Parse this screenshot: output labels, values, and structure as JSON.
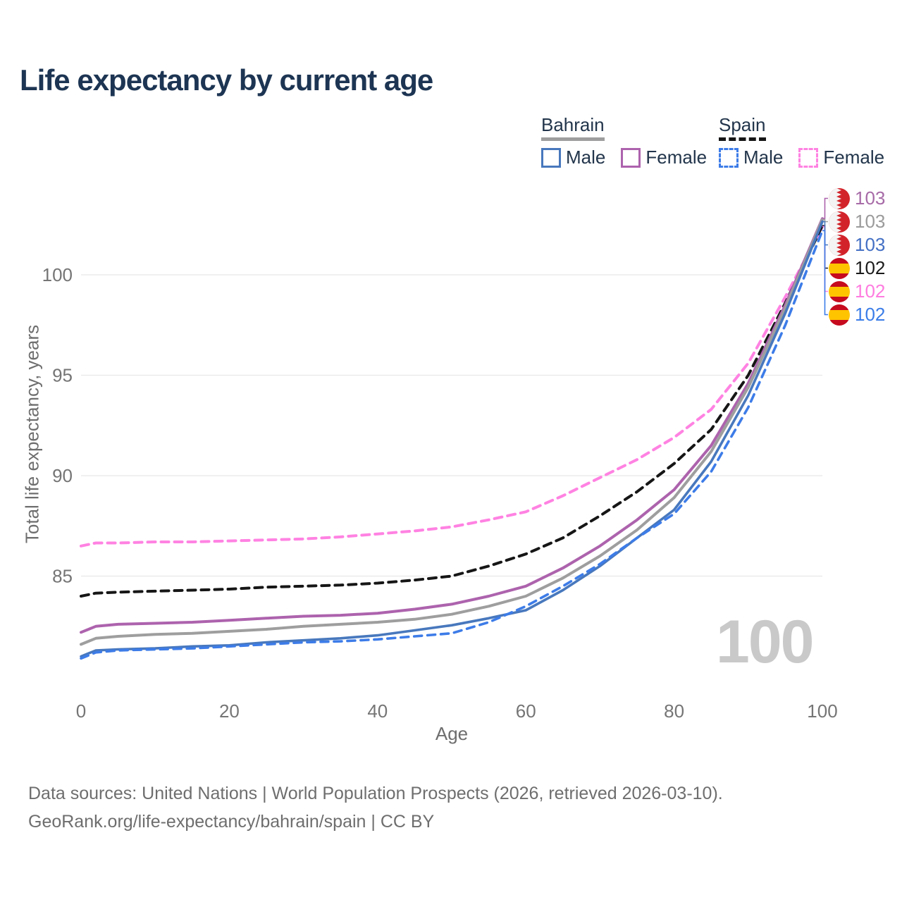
{
  "title": "Life expectancy by current age",
  "legend": {
    "groups": [
      {
        "label": "Bahrain",
        "line_style": "solid",
        "line_color": "#9e9e9e",
        "items": [
          {
            "label": "Male",
            "color": "#4878bd",
            "dashed": false
          },
          {
            "label": "Female",
            "color": "#ad63ad",
            "dashed": false
          }
        ]
      },
      {
        "label": "Spain",
        "line_style": "dashed",
        "line_color": "#161616",
        "items": [
          {
            "label": "Male",
            "color": "#3d7ce8",
            "dashed": true
          },
          {
            "label": "Female",
            "color": "#ff82e2",
            "dashed": true
          }
        ]
      }
    ]
  },
  "y_axis": {
    "title": "Total life expectancy, years",
    "ticks": [
      85,
      90,
      95,
      100
    ]
  },
  "x_axis": {
    "title": "Age",
    "ticks": [
      0,
      20,
      40,
      60,
      80,
      100
    ]
  },
  "end_labels": [
    {
      "value": "103",
      "flag": "bahrain",
      "color": "#a76ba7",
      "series": "bahrain_female"
    },
    {
      "value": "103",
      "flag": "bahrain",
      "color": "#9b9b9b",
      "series": "bahrain_total"
    },
    {
      "value": "103",
      "flag": "bahrain",
      "color": "#4470c4",
      "series": "bahrain_male"
    },
    {
      "value": "102",
      "flag": "spain",
      "color": "#1a1a1a",
      "series": "spain_total"
    },
    {
      "value": "102",
      "flag": "spain",
      "color": "#ff7ce0",
      "series": "spain_female"
    },
    {
      "value": "102",
      "flag": "spain",
      "color": "#3b7de8",
      "series": "spain_male"
    }
  ],
  "watermark": "100",
  "footer": [
    "Data sources: United Nations | World Population Prospects (2026, retrieved 2026-03-10).",
    "GeoRank.org/life-expectancy/bahrain/spain | CC BY"
  ],
  "ui_colors": {
    "title": "#1d3553",
    "axis_text": "#6e6e6e",
    "tick_text": "#757575",
    "gridline": "#e8e8e8",
    "watermark": "#c9c9c9",
    "bahrain_flag_red": "#d2232a",
    "spain_flag_red": "#c60b1e",
    "spain_flag_yellow": "#ffc400"
  },
  "chart_data": {
    "type": "line",
    "title": "Life expectancy by current age",
    "xlabel": "Age",
    "ylabel": "Total life expectancy, years",
    "xlim": [
      0,
      100
    ],
    "ylim": [
      79.5,
      104
    ],
    "grid": "horizontal",
    "legend_position": "top-right",
    "x": [
      0,
      2,
      5,
      10,
      15,
      20,
      25,
      30,
      35,
      40,
      45,
      50,
      55,
      60,
      65,
      70,
      75,
      80,
      85,
      90,
      95,
      100
    ],
    "series": [
      {
        "id": "spain_female",
        "name": "Spain Female",
        "color": "#ff82e2",
        "dash": true,
        "width": 4,
        "values": [
          86.5,
          86.65,
          86.65,
          86.7,
          86.7,
          86.75,
          86.8,
          86.85,
          86.95,
          87.1,
          87.25,
          87.45,
          87.8,
          88.2,
          89.0,
          89.9,
          90.8,
          91.9,
          93.3,
          95.6,
          98.9,
          102.4
        ]
      },
      {
        "id": "spain_total",
        "name": "Spain",
        "color": "#161616",
        "dash": true,
        "width": 4,
        "values": [
          84.0,
          84.15,
          84.2,
          84.25,
          84.3,
          84.35,
          84.45,
          84.5,
          84.55,
          84.65,
          84.8,
          85.0,
          85.5,
          86.1,
          86.9,
          88.0,
          89.2,
          90.6,
          92.3,
          95.0,
          98.6,
          102.45
        ]
      },
      {
        "id": "bahrain_female",
        "name": "Bahrain Female",
        "color": "#ad63ad",
        "dash": false,
        "width": 4,
        "values": [
          82.2,
          82.5,
          82.6,
          82.65,
          82.7,
          82.8,
          82.9,
          83.0,
          83.05,
          83.15,
          83.35,
          83.6,
          84.0,
          84.5,
          85.4,
          86.5,
          87.8,
          89.3,
          91.5,
          94.6,
          98.5,
          102.8
        ]
      },
      {
        "id": "bahrain_total",
        "name": "Bahrain",
        "color": "#9e9e9e",
        "dash": false,
        "width": 4,
        "values": [
          81.6,
          81.9,
          82.0,
          82.1,
          82.15,
          82.25,
          82.35,
          82.5,
          82.6,
          82.7,
          82.85,
          83.1,
          83.5,
          84.0,
          84.9,
          86.0,
          87.3,
          88.9,
          91.2,
          94.4,
          98.35,
          102.75
        ]
      },
      {
        "id": "bahrain_male",
        "name": "Bahrain Male",
        "color": "#4878bd",
        "dash": false,
        "width": 3.6,
        "values": [
          81.0,
          81.3,
          81.35,
          81.4,
          81.5,
          81.55,
          81.7,
          81.8,
          81.9,
          82.05,
          82.3,
          82.55,
          82.9,
          83.3,
          84.3,
          85.5,
          86.9,
          88.3,
          90.7,
          94.0,
          98.1,
          102.65
        ]
      },
      {
        "id": "spain_male",
        "name": "Spain Male",
        "color": "#3d7ce8",
        "dash": true,
        "width": 3.6,
        "values": [
          80.9,
          81.2,
          81.3,
          81.35,
          81.4,
          81.5,
          81.6,
          81.7,
          81.75,
          81.85,
          82.0,
          82.15,
          82.7,
          83.5,
          84.5,
          85.6,
          86.9,
          88.1,
          90.2,
          93.4,
          97.5,
          102.2
        ]
      }
    ],
    "end_values_rounded": {
      "bahrain_female": 103,
      "bahrain_total": 103,
      "bahrain_male": 103,
      "spain_total": 102,
      "spain_female": 102,
      "spain_male": 102
    }
  }
}
